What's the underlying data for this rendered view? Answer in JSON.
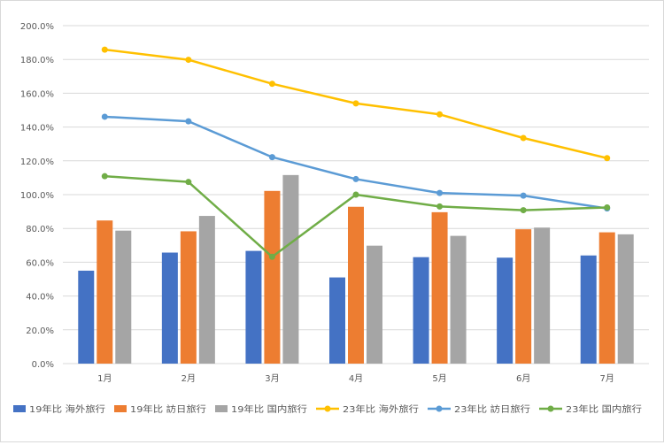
{
  "chart_data": {
    "type": "bar",
    "title": "",
    "xlabel": "",
    "ylabel": "",
    "ylim": [
      0,
      200
    ],
    "y_ticks": [
      0,
      20,
      40,
      60,
      80,
      100,
      120,
      140,
      160,
      180,
      200
    ],
    "y_tick_labels": [
      "0.0%",
      "20.0%",
      "40.0%",
      "60.0%",
      "80.0%",
      "100.0%",
      "120.0%",
      "140.0%",
      "160.0%",
      "180.0%",
      "200.0%"
    ],
    "grid": true,
    "legend_position": "bottom",
    "categories": [
      "1月",
      "2月",
      "3月",
      "4月",
      "5月",
      "6月",
      "7月"
    ],
    "series": [
      {
        "name": "19年比 海外旅行",
        "kind": "bar",
        "color": "#4472c4",
        "values": [
          55.0,
          65.7,
          66.7,
          51.0,
          63.0,
          62.7,
          64.0
        ]
      },
      {
        "name": "19年比 訪日旅行",
        "kind": "bar",
        "color": "#ed7d31",
        "values": [
          84.7,
          78.3,
          102.2,
          92.8,
          89.6,
          79.5,
          77.7
        ]
      },
      {
        "name": "19年比 国内旅行",
        "kind": "bar",
        "color": "#a5a5a5",
        "values": [
          78.7,
          87.4,
          111.6,
          69.8,
          75.6,
          80.5,
          76.5
        ]
      },
      {
        "name": "23年比 海外旅行",
        "kind": "line",
        "color": "#ffc000",
        "values": [
          185.8,
          179.8,
          165.6,
          154.0,
          147.5,
          133.5,
          121.6
        ]
      },
      {
        "name": "23年比 訪日旅行",
        "kind": "line",
        "color": "#5b9bd5",
        "values": [
          146.1,
          143.4,
          122.2,
          109.2,
          101.0,
          99.4,
          91.8
        ]
      },
      {
        "name": "23年比 国内旅行",
        "kind": "line",
        "color": "#70ad47",
        "values": [
          110.9,
          107.5,
          63.2,
          100.0,
          93.0,
          90.8,
          92.4
        ]
      }
    ]
  }
}
